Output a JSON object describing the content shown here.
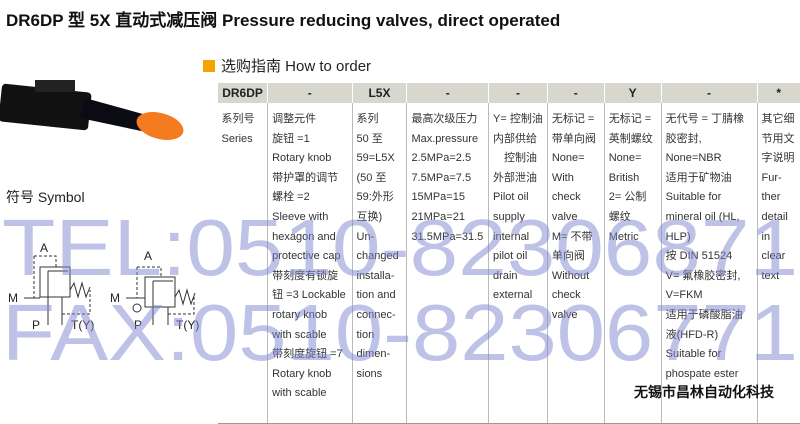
{
  "title": "DR6DP 型 5X 直动式减压阀  Pressure reducing valves, direct operated",
  "how_to_order": "选购指南  How to order",
  "symbol_label": "符号  Symbol",
  "symbol": {
    "port_a": "A",
    "port_m": "M",
    "port_p": "P",
    "port_t": "T(Y)"
  },
  "table": {
    "headers": [
      "DR6DP",
      "-",
      "L5X",
      "-",
      "-",
      "-",
      "Y",
      "-",
      "*"
    ],
    "columns": [
      [
        "系列号",
        "Series"
      ],
      [
        "调整元件",
        "旋钮 =1",
        "Rotary knob",
        "带护罩的调节",
        "螺栓 =2",
        "Sleeve with",
        "hexagon and",
        "protective cap",
        "带刻度有锁旋",
        "钮 =3 Lockable",
        "rotary knob",
        "with scable",
        "带刻度旋钮 =7",
        "Rotary knob",
        "with scable"
      ],
      [
        "系列",
        "50 至",
        "59=L5X",
        "(50 至",
        "59:外形",
        "互换)",
        "Un-",
        "changed",
        "installa-",
        "tion and",
        "connec-",
        "tion",
        "dimen-",
        "sions"
      ],
      [
        "最高次级压力",
        "Max.pressure",
        "2.5MPa=2.5",
        "7.5MPa=7.5",
        "15MPa=15",
        "21MPa=21",
        "31.5MPa=31.5"
      ],
      [
        "Y= 控制油",
        "内部供给",
        "　控制油",
        "外部泄油",
        "Pilot oil",
        "supply",
        "internal",
        "pilot oil",
        "drain",
        "external"
      ],
      [
        "无标记 =",
        "带单向阀",
        "None=",
        "With",
        "check",
        "valve",
        "M= 不带",
        "单向阀",
        "Without",
        "check",
        "valve"
      ],
      [
        "无标记 =",
        "英制螺纹",
        "None=",
        "British",
        "2= 公制",
        "螺纹",
        "Metric"
      ],
      [
        "无代号 = 丁腈橡",
        "胶密封,",
        "None=NBR",
        "适用于矿物油",
        "Suitable for",
        "mineral oil (HL,",
        "HLP)",
        "按 DIN 51524",
        "V= 氟橡胶密封,",
        "V=FKM",
        "适用于磷酸脂油",
        "液(HFD-R)",
        "Suitable for",
        "phospate ester"
      ],
      [
        "其它细",
        "节用文",
        "字说明",
        "Fur-",
        "ther",
        "detail",
        "in",
        "clear",
        "text"
      ]
    ]
  },
  "watermark": {
    "tel": "TEL:0510-82306871",
    "fax": "FAX:0510-82306771"
  },
  "company": "无锡市昌林自动化科技",
  "colors": {
    "accent": "#f5a300",
    "header_bg": "#d8d7ce",
    "watermark": "#7d86d0"
  }
}
